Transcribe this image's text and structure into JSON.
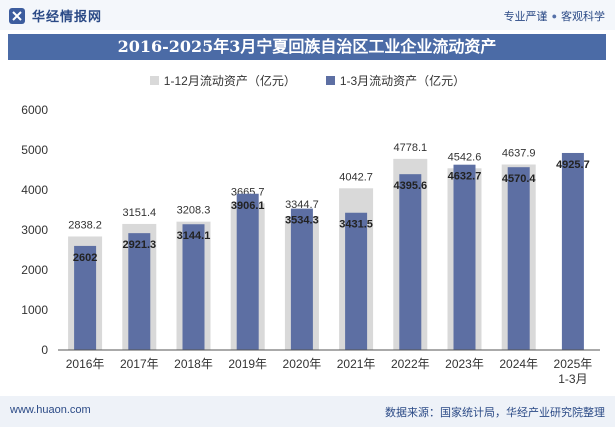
{
  "header": {
    "brand_name": "华经情报网",
    "slogan_left": "专业严谨",
    "slogan_right": "客观科学"
  },
  "colors": {
    "title_bg": "#4b6ba6",
    "series_total": "#d9d9d9",
    "series_q1": "#5d6fa3"
  },
  "footer": {
    "url": "www.huaon.com",
    "source": "数据来源：国家统计局，华经产业研究院整理"
  },
  "chart_data": {
    "type": "bar",
    "title": "2016-2025年3月宁夏回族自治区工业企业流动资产",
    "categories": [
      "2016年",
      "2017年",
      "2018年",
      "2019年",
      "2020年",
      "2021年",
      "2022年",
      "2023年",
      "2024年",
      "2025年\n1-3月"
    ],
    "series": [
      {
        "name": "1-12月流动资产（亿元）",
        "values": [
          2838.2,
          3151.4,
          3208.3,
          3665.7,
          3344.7,
          4042.7,
          4778.1,
          4542.6,
          4637.9,
          null
        ],
        "labels": [
          "2838.2",
          "3151.4",
          "3208.3",
          "3665.7",
          "3344.7",
          "4042.7",
          "4778.1",
          "4542.6",
          "4637.9",
          ""
        ]
      },
      {
        "name": "1-3月流动资产（亿元）",
        "values": [
          2602,
          2921.3,
          3144.1,
          3906.1,
          3534.3,
          3431.5,
          4395.6,
          4632.7,
          4570.4,
          4925.7
        ],
        "labels": [
          "2602",
          "2921.3",
          "3144.1",
          "3906.1",
          "3534.3",
          "3431.5",
          "4395.6",
          "4632.7",
          "4570.4",
          "4925.7"
        ]
      }
    ],
    "yticks": [
      "0",
      "1000",
      "2000",
      "3000",
      "4000",
      "5000",
      "6000"
    ],
    "ylim": [
      0,
      6000
    ],
    "grid": false,
    "legend": "top-center"
  }
}
